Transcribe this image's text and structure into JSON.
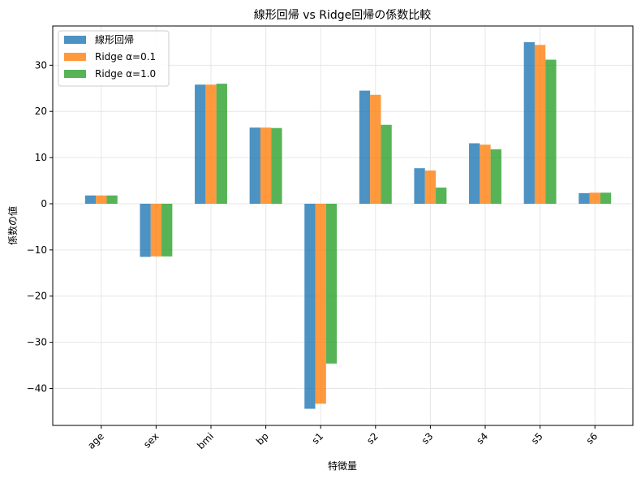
{
  "chart_data": {
    "type": "bar",
    "title": "線形回帰 vs Ridge回帰の係数比較",
    "xlabel": "特徴量",
    "ylabel": "係数の値",
    "categories": [
      "age",
      "sex",
      "bmi",
      "bp",
      "s1",
      "s2",
      "s3",
      "s4",
      "s5",
      "s6"
    ],
    "series": [
      {
        "name": "線形回帰",
        "color": "#1f77b4",
        "values": [
          1.8,
          -11.5,
          25.8,
          16.5,
          -44.4,
          24.5,
          7.7,
          13.1,
          35.0,
          2.3
        ]
      },
      {
        "name": "Ridge α=0.1",
        "color": "#ff7f0e",
        "values": [
          1.8,
          -11.4,
          25.8,
          16.5,
          -43.3,
          23.6,
          7.2,
          12.8,
          34.4,
          2.4
        ]
      },
      {
        "name": "Ridge α=1.0",
        "color": "#2ca02c",
        "values": [
          1.8,
          -11.4,
          26.0,
          16.4,
          -34.6,
          17.1,
          3.5,
          11.8,
          31.2,
          2.4
        ]
      }
    ],
    "ylim": [
      -48,
      38.5
    ],
    "yticks": [
      -40,
      -30,
      -20,
      -10,
      0,
      10,
      20,
      30
    ],
    "grid": true,
    "legend_position": "top-left"
  }
}
